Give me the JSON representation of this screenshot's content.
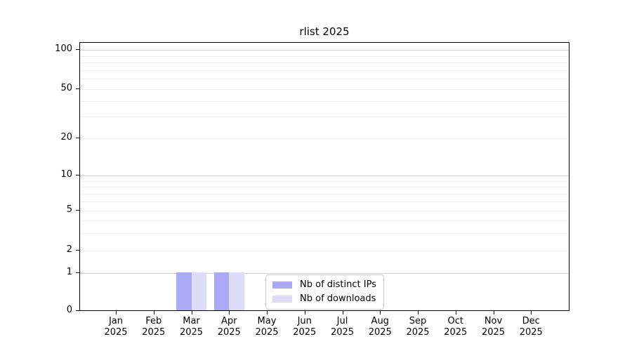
{
  "chart_data": {
    "type": "bar",
    "title": "rlist 2025",
    "categories": [
      "Jan",
      "Feb",
      "Mar",
      "Apr",
      "May",
      "Jun",
      "Jul",
      "Aug",
      "Sep",
      "Oct",
      "Nov",
      "Dec"
    ],
    "year_label": "2025",
    "series": [
      {
        "name": "Nb of distinct IPs",
        "color": "#a9a9f5",
        "values": [
          0,
          0,
          1,
          1,
          0,
          0,
          0,
          0,
          0,
          0,
          0,
          0
        ]
      },
      {
        "name": "Nb of downloads",
        "color": "#dcdcf8",
        "values": [
          0,
          0,
          1,
          1,
          0,
          0,
          0,
          0,
          0,
          0,
          0,
          0
        ]
      }
    ],
    "y_axis": {
      "ticks": [
        0,
        1,
        2,
        5,
        10,
        20,
        50,
        100
      ],
      "scale": "log-like",
      "ylim": [
        0,
        130
      ]
    },
    "grid": {
      "major_values": [
        1,
        10,
        100
      ],
      "minor_values": [
        2,
        3,
        4,
        5,
        6,
        7,
        8,
        9,
        20,
        30,
        40,
        50,
        60,
        70,
        80,
        90
      ],
      "orientation": "horizontal"
    },
    "legend": {
      "entries": [
        "Nb of distinct IPs",
        "Nb of downloads"
      ],
      "position": "inside-bottom-center"
    },
    "colors": {
      "distinct_ips": "#a9a9f5",
      "downloads": "#dcdcf8",
      "grid_major": "#d2d2d2",
      "grid_minor": "#f1f1f1",
      "axis": "#000000",
      "background": "#ffffff"
    }
  }
}
